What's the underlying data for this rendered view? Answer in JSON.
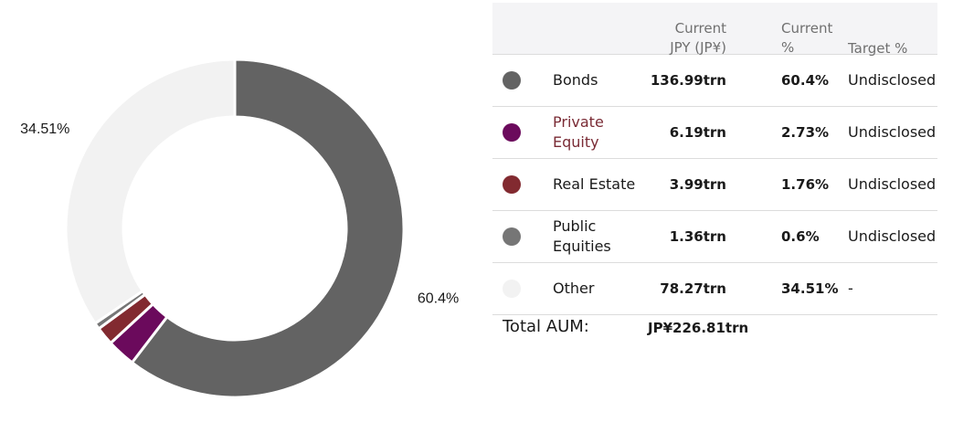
{
  "chart_data": {
    "type": "pie",
    "donut": true,
    "slices": [
      {
        "name": "Bonds",
        "value": 60.4,
        "color": "#636363"
      },
      {
        "name": "Private Equity",
        "value": 2.73,
        "color": "#6b0a5c"
      },
      {
        "name": "Real Estate",
        "value": 1.76,
        "color": "#822a30"
      },
      {
        "name": "Public Equities",
        "value": 0.6,
        "color": "#767676"
      },
      {
        "name": "Other",
        "value": 34.51,
        "color": "#f2f2f2"
      }
    ],
    "labels": [
      {
        "slice": "Bonds",
        "text": "60.4%"
      },
      {
        "slice": "Other",
        "text": "34.51%"
      }
    ]
  },
  "table": {
    "headers": {
      "current_line1": "Current",
      "current_line2": "JPY (JP¥)",
      "pct_line1": "Current",
      "pct_line2": "%",
      "target": "Target %"
    },
    "rows": [
      {
        "name": "Bonds",
        "value": "136.99trn",
        "pct": "60.4%",
        "target": "Undisclosed",
        "color": "#636363",
        "highlight": false
      },
      {
        "name": "Private Equity",
        "value": "6.19trn",
        "pct": "2.73%",
        "target": "Undisclosed",
        "color": "#6b0a5c",
        "highlight": true
      },
      {
        "name": "Real Estate",
        "value": "3.99trn",
        "pct": "1.76%",
        "target": "Undisclosed",
        "color": "#822a30",
        "highlight": false
      },
      {
        "name": "Public Equities",
        "value": "1.36trn",
        "pct": "0.6%",
        "target": "Undisclosed",
        "color": "#767676",
        "highlight": false
      },
      {
        "name": "Other",
        "value": "78.27trn",
        "pct": "34.51%",
        "target": "-",
        "color": "#f2f2f2",
        "highlight": false
      }
    ],
    "total_label": "Total AUM:",
    "total_value": "JP¥226.81trn"
  }
}
